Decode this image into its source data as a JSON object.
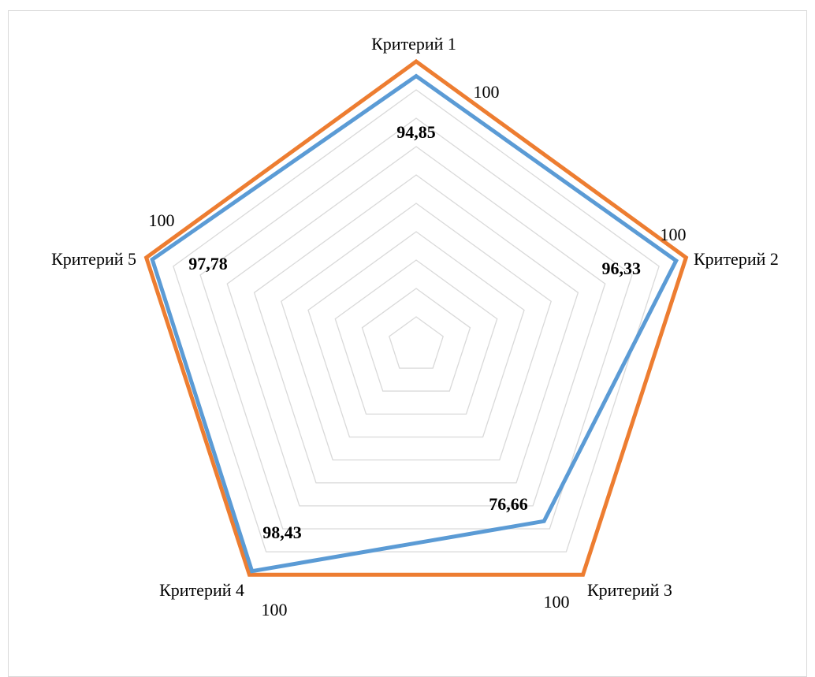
{
  "chart_data": {
    "type": "radar",
    "categories": [
      "Критерий 1",
      "Критерий 2",
      "Критерий 3",
      "Критерий 4",
      "Критерий 5"
    ],
    "series": [
      {
        "values": [
          94.85,
          96.33,
          76.66,
          98.43,
          97.78
        ],
        "labels": [
          "94,85",
          "96,33",
          "76,66",
          "98,43",
          "97,78"
        ],
        "color": "#5b9bd5",
        "label_bold": true
      },
      {
        "values": [
          100,
          100,
          100,
          100,
          100
        ],
        "labels": [
          "100",
          "100",
          "100",
          "100",
          "100"
        ],
        "color": "#ed7d31",
        "label_bold": false
      }
    ],
    "rmin": 0,
    "rmax": 100,
    "grid_step": 10,
    "grid": true,
    "grid_color": "#d9d9d9",
    "legend": "none"
  }
}
